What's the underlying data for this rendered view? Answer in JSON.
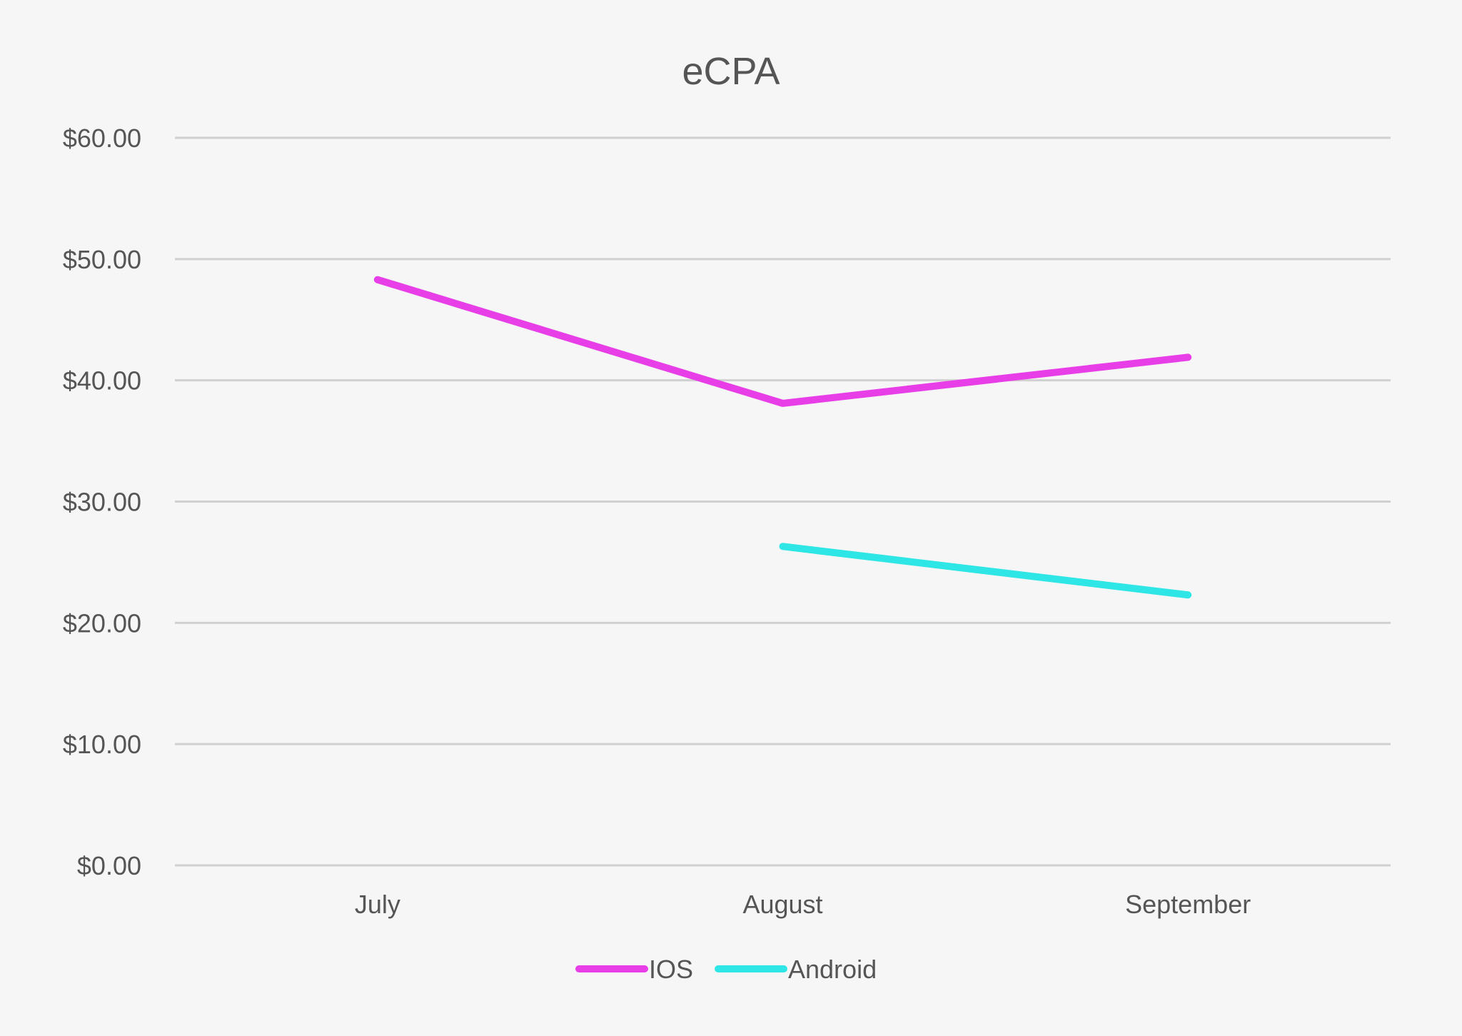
{
  "chart_data": {
    "type": "line",
    "title": "eCPA",
    "xlabel": "",
    "ylabel": "",
    "categories": [
      "July",
      "August",
      "September"
    ],
    "ylim": [
      0,
      60
    ],
    "y_ticks": [
      0,
      10,
      20,
      30,
      40,
      50,
      60
    ],
    "y_tick_labels": [
      "$0.00",
      "$10.00",
      "$20.00",
      "$30.00",
      "$40.00",
      "$50.00",
      "$60.00"
    ],
    "grid": true,
    "legend_position": "bottom",
    "series": [
      {
        "name": "IOS",
        "color": "#e83ee8",
        "values": [
          48.3,
          38.1,
          41.9
        ]
      },
      {
        "name": "Android",
        "color": "#2ee6e6",
        "values": [
          null,
          26.3,
          22.3
        ]
      }
    ]
  }
}
